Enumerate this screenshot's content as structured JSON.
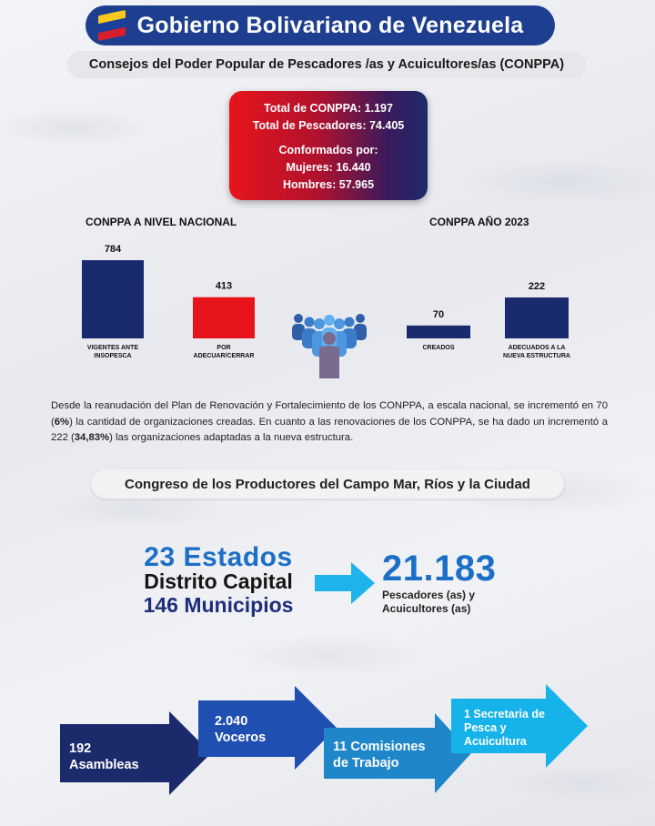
{
  "header": {
    "title": "Gobierno Bolivariano de Venezuela",
    "flag_colors": [
      "#f7c81e",
      "#1b3f9a",
      "#d71e2b"
    ]
  },
  "subtitle": "Consejos del Poder Popular de Pescadores /as y Acuicultores/as (CONPPA)",
  "totals": {
    "line1": "Total de CONPPA: 1.197",
    "line2": "Total de Pescadores: 74.405",
    "line3": "Conformados por:",
    "line4": "Mujeres: 16.440",
    "line5": "Hombres: 57.965"
  },
  "chart_data": [
    {
      "type": "bar",
      "title": "CONPPA A NIVEL NACIONAL",
      "categories": [
        "VIGENTES ANTE INSOPESCA",
        "POR ADECUAR/CERRAR"
      ],
      "category_lines": [
        [
          "VIGENTES ANTE",
          "INSOPESCA"
        ],
        [
          "POR",
          "ADECUAR/CERRAR"
        ]
      ],
      "values": [
        784,
        413
      ],
      "value_labels": [
        "784",
        "413"
      ],
      "colors": [
        "#1a2a6e",
        "#e8141b"
      ],
      "ylim": [
        0,
        784
      ]
    },
    {
      "type": "bar",
      "title": "CONPPA AÑO 2023",
      "categories": [
        "CREADOS",
        "ADECUADOS A LA NUEVA ESTRUCTURA"
      ],
      "category_lines": [
        [
          "CREADOS"
        ],
        [
          "ADECUADOS A LA",
          "NUEVA ESTRUCTURA"
        ]
      ],
      "values": [
        70,
        222
      ],
      "value_labels": [
        "70",
        "222"
      ],
      "colors": [
        "#1a2a6e",
        "#1a2a6e"
      ],
      "ylim": [
        0,
        222
      ]
    }
  ],
  "paragraph": {
    "p1": "Desde la reanudación del Plan de Renovación y Fortalecimiento de los CONPPA, a escala nacional, se incrementó en 70 (",
    "b1": "6%",
    "p2": ") la cantidad de organizaciones creadas. En cuanto a las renovaciones de los CONPPA, se ha dado un incrementó a 222 (",
    "b2": "34,83%",
    "p3": ") las organizaciones adaptadas a la nueva estructura."
  },
  "congress": {
    "title": "Congreso de los Productores del Campo Mar, Ríos y la Ciudad",
    "states_line1": "23 Estados",
    "states_line2": "Distrito Capital",
    "states_line3": "146 Municipios",
    "fishers_number": "21.183",
    "fishers_label1": "Pescadores (as) y",
    "fishers_label2": "Acuicultores (as)"
  },
  "steps": [
    {
      "line1": "192",
      "line2": "Asambleas",
      "color": "#1b2a6b"
    },
    {
      "line1": "2.040",
      "line2": "Voceros",
      "color": "#1f4fb0"
    },
    {
      "line1": "11 Comisiones",
      "line2": "de Trabajo",
      "color": "#1f86c9"
    },
    {
      "line1": "1 Secretaria de",
      "line2": "Pesca y",
      "line3": "Acuicultura",
      "color": "#16b2ea"
    }
  ],
  "colors": {
    "header_bg": "#1e3f8f",
    "accent_blue": "#1c6fc7",
    "navy": "#1a2a6e",
    "red": "#e8141b",
    "light_blue_arrow": "#1fb3ec"
  }
}
